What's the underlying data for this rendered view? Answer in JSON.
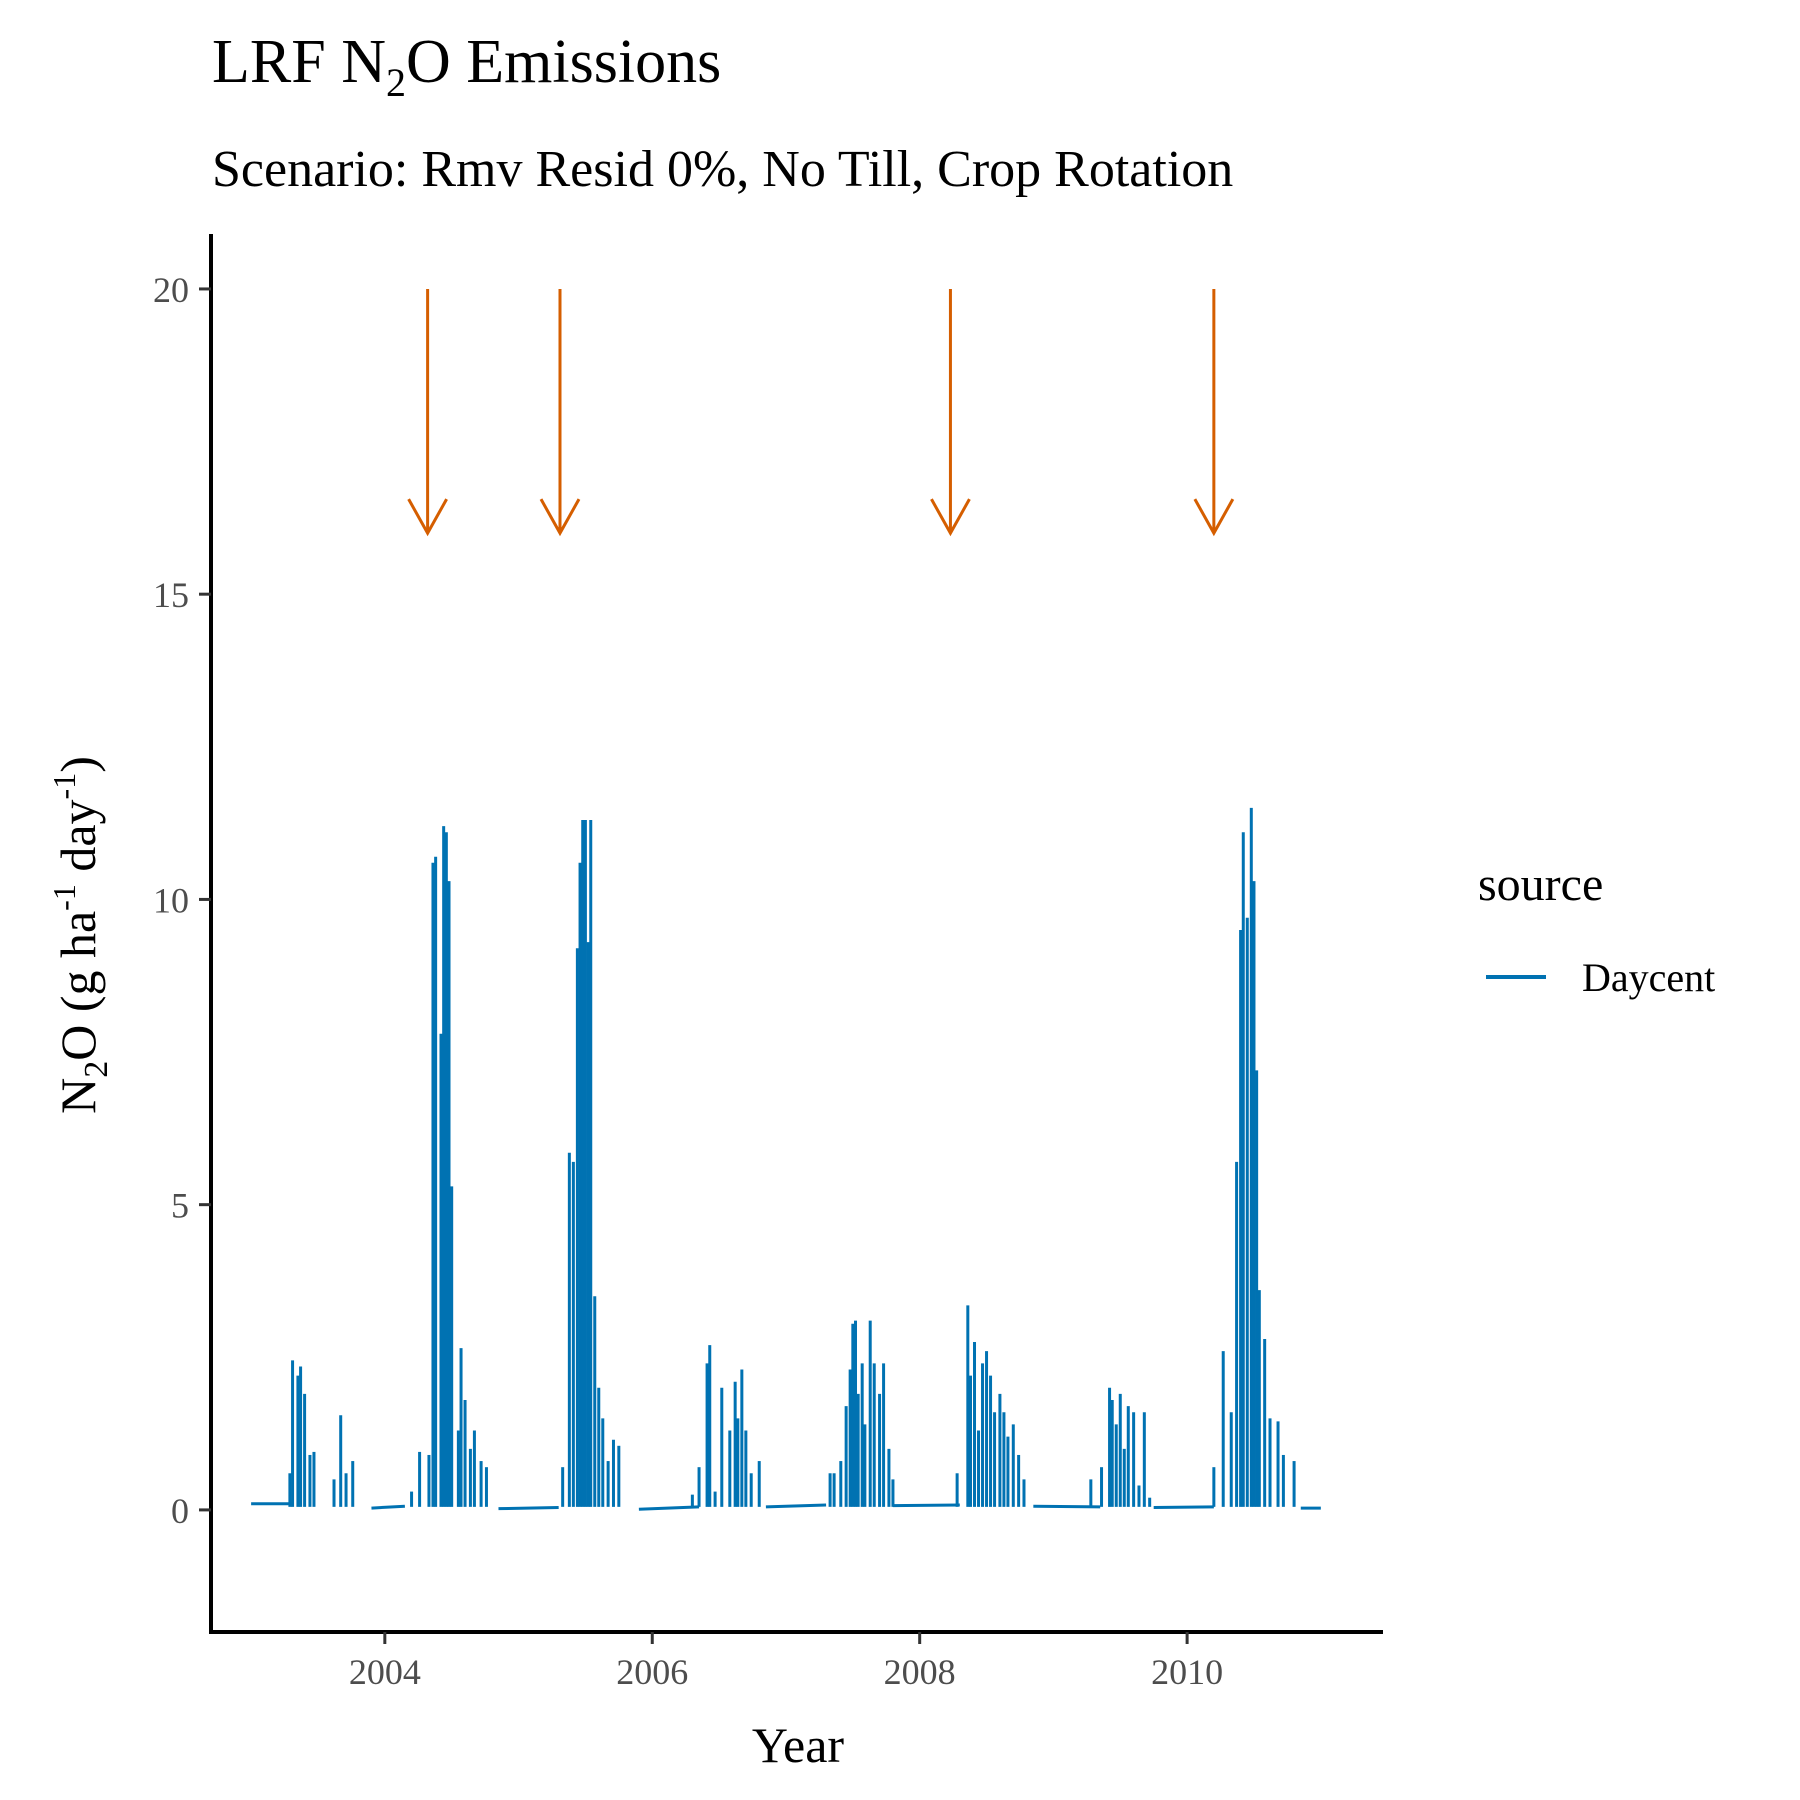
{
  "chart_data": {
    "type": "line",
    "title_main": "LRF N",
    "title_sub": "2",
    "title_end": "O Emissions",
    "subtitle": "Scenario: Rmv Resid 0%, No Till, Crop Rotation",
    "xlabel": "Year",
    "ylabel_parts": [
      "N",
      "2",
      "O (g ha",
      "-1",
      " day",
      "-1",
      ")"
    ],
    "xlim": [
      2002.7,
      2011.45
    ],
    "ylim": [
      -2.0,
      20.9
    ],
    "x_ticks": [
      2004,
      2006,
      2008,
      2010
    ],
    "x_tick_labels": [
      "2004",
      "2006",
      "2008",
      "2010"
    ],
    "y_ticks": [
      0,
      5,
      10,
      15,
      20
    ],
    "y_tick_labels": [
      "0",
      "5",
      "10",
      "15",
      "20"
    ],
    "grid": false,
    "legend": {
      "title": "source",
      "position": "right",
      "entries": [
        "Daycent"
      ]
    },
    "series": [
      {
        "name": "Daycent",
        "color": "#0072B2",
        "baseline_segments": [
          {
            "x": [
              2003.0,
              2003.3
            ],
            "y": [
              0.1,
              0.1
            ]
          },
          {
            "x": [
              2003.9,
              2004.15
            ],
            "y": [
              0.03,
              0.06
            ]
          },
          {
            "x": [
              2004.85,
              2005.3
            ],
            "y": [
              0.02,
              0.04
            ]
          },
          {
            "x": [
              2005.9,
              2006.35
            ],
            "y": [
              0.01,
              0.05
            ]
          },
          {
            "x": [
              2006.85,
              2007.3
            ],
            "y": [
              0.05,
              0.08
            ]
          },
          {
            "x": [
              2007.8,
              2008.3
            ],
            "y": [
              0.07,
              0.08
            ]
          },
          {
            "x": [
              2008.85,
              2009.35
            ],
            "y": [
              0.06,
              0.05
            ]
          },
          {
            "x": [
              2009.75,
              2010.2
            ],
            "y": [
              0.04,
              0.05
            ]
          },
          {
            "x": [
              2010.85,
              2011.0
            ],
            "y": [
              0.03,
              0.03
            ]
          }
        ],
        "peaks": [
          {
            "x": 2003.29,
            "y": 0.6
          },
          {
            "x": 2003.31,
            "y": 2.45
          },
          {
            "x": 2003.35,
            "y": 2.2
          },
          {
            "x": 2003.37,
            "y": 2.35
          },
          {
            "x": 2003.4,
            "y": 1.9
          },
          {
            "x": 2003.44,
            "y": 0.9
          },
          {
            "x": 2003.47,
            "y": 0.95
          },
          {
            "x": 2003.62,
            "y": 0.5
          },
          {
            "x": 2003.67,
            "y": 1.55
          },
          {
            "x": 2003.71,
            "y": 0.6
          },
          {
            "x": 2003.76,
            "y": 0.8
          },
          {
            "x": 2004.2,
            "y": 0.3
          },
          {
            "x": 2004.26,
            "y": 0.95
          },
          {
            "x": 2004.33,
            "y": 0.9
          },
          {
            "x": 2004.36,
            "y": 10.6
          },
          {
            "x": 2004.38,
            "y": 10.7
          },
          {
            "x": 2004.42,
            "y": 7.8
          },
          {
            "x": 2004.44,
            "y": 11.2
          },
          {
            "x": 2004.46,
            "y": 11.1
          },
          {
            "x": 2004.48,
            "y": 10.3
          },
          {
            "x": 2004.5,
            "y": 5.3
          },
          {
            "x": 2004.55,
            "y": 1.3
          },
          {
            "x": 2004.57,
            "y": 2.65
          },
          {
            "x": 2004.6,
            "y": 1.8
          },
          {
            "x": 2004.64,
            "y": 1.0
          },
          {
            "x": 2004.67,
            "y": 1.3
          },
          {
            "x": 2004.72,
            "y": 0.8
          },
          {
            "x": 2004.76,
            "y": 0.7
          },
          {
            "x": 2005.33,
            "y": 0.7
          },
          {
            "x": 2005.38,
            "y": 5.85
          },
          {
            "x": 2005.41,
            "y": 5.7
          },
          {
            "x": 2005.44,
            "y": 9.2
          },
          {
            "x": 2005.46,
            "y": 10.6
          },
          {
            "x": 2005.48,
            "y": 11.3
          },
          {
            "x": 2005.5,
            "y": 11.3
          },
          {
            "x": 2005.52,
            "y": 9.3
          },
          {
            "x": 2005.54,
            "y": 11.3
          },
          {
            "x": 2005.57,
            "y": 3.5
          },
          {
            "x": 2005.6,
            "y": 2.0
          },
          {
            "x": 2005.63,
            "y": 1.5
          },
          {
            "x": 2005.67,
            "y": 0.8
          },
          {
            "x": 2005.71,
            "y": 1.15
          },
          {
            "x": 2005.75,
            "y": 1.05
          },
          {
            "x": 2006.3,
            "y": 0.25
          },
          {
            "x": 2006.35,
            "y": 0.7
          },
          {
            "x": 2006.41,
            "y": 2.4
          },
          {
            "x": 2006.43,
            "y": 2.7
          },
          {
            "x": 2006.47,
            "y": 0.3
          },
          {
            "x": 2006.52,
            "y": 2.0
          },
          {
            "x": 2006.58,
            "y": 1.3
          },
          {
            "x": 2006.62,
            "y": 2.1
          },
          {
            "x": 2006.64,
            "y": 1.5
          },
          {
            "x": 2006.67,
            "y": 2.3
          },
          {
            "x": 2006.7,
            "y": 1.3
          },
          {
            "x": 2006.74,
            "y": 0.6
          },
          {
            "x": 2006.8,
            "y": 0.8
          },
          {
            "x": 2007.33,
            "y": 0.6
          },
          {
            "x": 2007.36,
            "y": 0.6
          },
          {
            "x": 2007.41,
            "y": 0.8
          },
          {
            "x": 2007.45,
            "y": 1.7
          },
          {
            "x": 2007.48,
            "y": 2.3
          },
          {
            "x": 2007.5,
            "y": 3.05
          },
          {
            "x": 2007.52,
            "y": 3.1
          },
          {
            "x": 2007.54,
            "y": 1.9
          },
          {
            "x": 2007.57,
            "y": 2.4
          },
          {
            "x": 2007.59,
            "y": 1.4
          },
          {
            "x": 2007.63,
            "y": 3.1
          },
          {
            "x": 2007.66,
            "y": 2.4
          },
          {
            "x": 2007.7,
            "y": 1.9
          },
          {
            "x": 2007.73,
            "y": 2.4
          },
          {
            "x": 2007.77,
            "y": 1.0
          },
          {
            "x": 2007.8,
            "y": 0.5
          },
          {
            "x": 2008.28,
            "y": 0.6
          },
          {
            "x": 2008.36,
            "y": 3.35
          },
          {
            "x": 2008.38,
            "y": 2.2
          },
          {
            "x": 2008.41,
            "y": 2.75
          },
          {
            "x": 2008.44,
            "y": 1.3
          },
          {
            "x": 2008.47,
            "y": 2.4
          },
          {
            "x": 2008.5,
            "y": 2.6
          },
          {
            "x": 2008.53,
            "y": 2.2
          },
          {
            "x": 2008.56,
            "y": 1.6
          },
          {
            "x": 2008.6,
            "y": 1.9
          },
          {
            "x": 2008.63,
            "y": 1.6
          },
          {
            "x": 2008.66,
            "y": 1.2
          },
          {
            "x": 2008.7,
            "y": 1.4
          },
          {
            "x": 2008.74,
            "y": 0.9
          },
          {
            "x": 2008.78,
            "y": 0.5
          },
          {
            "x": 2009.28,
            "y": 0.5
          },
          {
            "x": 2009.36,
            "y": 0.7
          },
          {
            "x": 2009.42,
            "y": 2.0
          },
          {
            "x": 2009.44,
            "y": 1.8
          },
          {
            "x": 2009.47,
            "y": 1.4
          },
          {
            "x": 2009.5,
            "y": 1.9
          },
          {
            "x": 2009.53,
            "y": 1.0
          },
          {
            "x": 2009.56,
            "y": 1.7
          },
          {
            "x": 2009.6,
            "y": 1.6
          },
          {
            "x": 2009.64,
            "y": 0.4
          },
          {
            "x": 2009.68,
            "y": 1.6
          },
          {
            "x": 2009.72,
            "y": 0.2
          },
          {
            "x": 2010.2,
            "y": 0.7
          },
          {
            "x": 2010.27,
            "y": 2.6
          },
          {
            "x": 2010.33,
            "y": 1.6
          },
          {
            "x": 2010.37,
            "y": 5.7
          },
          {
            "x": 2010.4,
            "y": 9.5
          },
          {
            "x": 2010.42,
            "y": 11.1
          },
          {
            "x": 2010.45,
            "y": 9.7
          },
          {
            "x": 2010.48,
            "y": 11.5
          },
          {
            "x": 2010.5,
            "y": 10.3
          },
          {
            "x": 2010.52,
            "y": 7.2
          },
          {
            "x": 2010.54,
            "y": 3.6
          },
          {
            "x": 2010.58,
            "y": 2.8
          },
          {
            "x": 2010.62,
            "y": 1.5
          },
          {
            "x": 2010.68,
            "y": 1.45
          },
          {
            "x": 2010.72,
            "y": 0.9
          },
          {
            "x": 2010.8,
            "y": 0.8
          }
        ]
      }
    ],
    "annotations": {
      "type": "arrow",
      "color": "#D55E00",
      "y_from": 20,
      "y_to": 16,
      "x": [
        2004.32,
        2005.31,
        2008.23,
        2010.2
      ]
    }
  }
}
